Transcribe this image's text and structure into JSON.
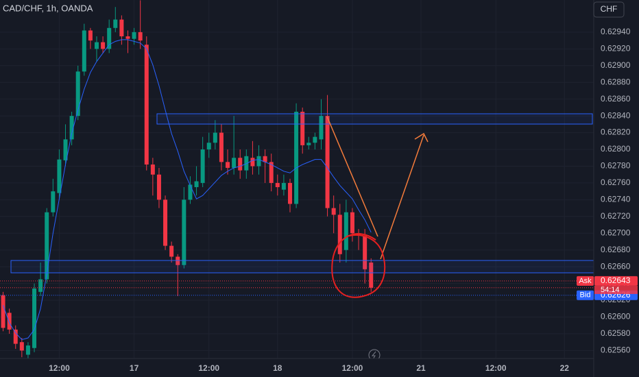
{
  "chart_data": {
    "type": "candlestick",
    "title": "CAD/CHF, 1h, OANDA",
    "currency": "CHF",
    "colors": {
      "up": "#089981",
      "down": "#f23645"
    },
    "open": [
      0.62626,
      0.62605,
      0.62585,
      0.6257,
      0.62555,
      0.62563,
      0.6263,
      0.62645,
      0.62725,
      0.62748,
      0.62787,
      0.62812,
      0.6284,
      0.62893,
      0.62942,
      0.6292,
      0.62928,
      0.6292,
      0.62945,
      0.62955,
      0.62935,
      0.62932,
      0.6294,
      0.62925,
      0.62782,
      0.6277,
      0.6274,
      0.62685,
      0.62672,
      0.62662,
      0.6274,
      0.62755,
      0.6276,
      0.628,
      0.62808,
      0.6282,
      0.62785,
      0.62778,
      0.6279,
      0.62775,
      0.6279,
      0.6278,
      0.62792,
      0.62785,
      0.6276,
      0.62752,
      0.6276,
      0.62735,
      0.62845,
      0.62805,
      0.62808,
      0.62812,
      0.6284,
      0.6273,
      0.62722,
      0.6268,
      0.62725,
      0.627,
      0.62697,
      0.62665
    ],
    "high": [
      0.6263,
      0.6261,
      0.6259,
      0.62575,
      0.6257,
      0.6264,
      0.62665,
      0.6273,
      0.62765,
      0.628,
      0.6283,
      0.62845,
      0.629,
      0.6295,
      0.62945,
      0.62935,
      0.62935,
      0.62955,
      0.6297,
      0.6296,
      0.62942,
      0.62945,
      0.62978,
      0.62935,
      0.6279,
      0.62778,
      0.62745,
      0.6269,
      0.62675,
      0.62755,
      0.62768,
      0.6278,
      0.62815,
      0.6282,
      0.62835,
      0.6283,
      0.628,
      0.6284,
      0.628,
      0.628,
      0.6281,
      0.62805,
      0.628,
      0.62795,
      0.6277,
      0.6277,
      0.62765,
      0.62855,
      0.6285,
      0.62815,
      0.6282,
      0.6286,
      0.62865,
      0.62745,
      0.62735,
      0.6274,
      0.6273,
      0.62705,
      0.62705,
      0.6267
    ],
    "low": [
      0.62583,
      0.6258,
      0.62562,
      0.62552,
      0.62548,
      0.62558,
      0.62625,
      0.6264,
      0.6272,
      0.6274,
      0.6278,
      0.62805,
      0.62835,
      0.62888,
      0.6292,
      0.62905,
      0.62915,
      0.62915,
      0.6294,
      0.62925,
      0.62915,
      0.62925,
      0.6292,
      0.62775,
      0.62745,
      0.6273,
      0.6268,
      0.62665,
      0.62625,
      0.62658,
      0.62735,
      0.62745,
      0.62755,
      0.6279,
      0.628,
      0.62775,
      0.6277,
      0.6277,
      0.62765,
      0.62765,
      0.6277,
      0.6277,
      0.6276,
      0.6275,
      0.62745,
      0.62745,
      0.62725,
      0.6273,
      0.62795,
      0.628,
      0.628,
      0.628,
      0.6272,
      0.627,
      0.62665,
      0.62665,
      0.6269,
      0.6268,
      0.6264,
      0.6263
    ],
    "close": [
      0.62587,
      0.62585,
      0.62568,
      0.6256,
      0.62566,
      0.62634,
      0.62645,
      0.62725,
      0.6275,
      0.62788,
      0.62812,
      0.6284,
      0.62893,
      0.62942,
      0.6293,
      0.62928,
      0.6292,
      0.62945,
      0.62955,
      0.62935,
      0.62932,
      0.6294,
      0.6293,
      0.62782,
      0.6277,
      0.6274,
      0.62685,
      0.62672,
      0.62662,
      0.6274,
      0.62758,
      0.62762,
      0.628,
      0.62808,
      0.6282,
      0.62785,
      0.62778,
      0.6279,
      0.62775,
      0.62792,
      0.6278,
      0.62792,
      0.62785,
      0.6276,
      0.62755,
      0.6276,
      0.62735,
      0.62845,
      0.62805,
      0.62808,
      0.62815,
      0.6284,
      0.6273,
      0.62722,
      0.62675,
      0.62725,
      0.627,
      0.62697,
      0.62657,
      0.62635
    ],
    "ma": {
      "color": "#2962ff",
      "values": [
        0.62614,
        0.62593,
        0.62581,
        0.62573,
        0.62575,
        0.62585,
        0.6261,
        0.62651,
        0.627,
        0.62741,
        0.62782,
        0.62819,
        0.62847,
        0.62872,
        0.62892,
        0.62905,
        0.62915,
        0.62925,
        0.62929,
        0.62931,
        0.62931,
        0.62929,
        0.62927,
        0.6292,
        0.62901,
        0.62876,
        0.62847,
        0.62819,
        0.62798,
        0.62774,
        0.62757,
        0.62741,
        0.62745,
        0.62753,
        0.62761,
        0.62769,
        0.62774,
        0.62778,
        0.6278,
        0.62783,
        0.62787,
        0.62788,
        0.62785,
        0.62782,
        0.62778,
        0.62774,
        0.62772,
        0.62778,
        0.62782,
        0.62785,
        0.62788,
        0.62788,
        0.62778,
        0.62767,
        0.62757,
        0.62749,
        0.62741,
        0.62728,
        0.62716,
        0.62701
      ]
    },
    "ylim": [
      0.6255,
      0.6298
    ],
    "yticks": [
      {
        "value": 0.6256,
        "label": "0.62560"
      },
      {
        "value": 0.6258,
        "label": "0.62580"
      },
      {
        "value": 0.626,
        "label": "0.62600"
      },
      {
        "value": 0.6262,
        "label": "0.62620"
      },
      {
        "value": 0.6264,
        "label": "0.62640"
      },
      {
        "value": 0.6266,
        "label": "0.62660"
      },
      {
        "value": 0.6268,
        "label": "0.62680"
      },
      {
        "value": 0.627,
        "label": "0.62700"
      },
      {
        "value": 0.6272,
        "label": "0.62720"
      },
      {
        "value": 0.6274,
        "label": "0.62740"
      },
      {
        "value": 0.6276,
        "label": "0.62760"
      },
      {
        "value": 0.6278,
        "label": "0.62780"
      },
      {
        "value": 0.628,
        "label": "0.62800"
      },
      {
        "value": 0.6282,
        "label": "0.62820"
      },
      {
        "value": 0.6284,
        "label": "0.62840"
      },
      {
        "value": 0.6286,
        "label": "0.62860"
      },
      {
        "value": 0.6288,
        "label": "0.62880"
      },
      {
        "value": 0.629,
        "label": "0.62900"
      },
      {
        "value": 0.6292,
        "label": "0.62920"
      },
      {
        "value": 0.6294,
        "label": "0.62940"
      }
    ],
    "xlim": [
      -0.5,
      94.7
    ],
    "xticks": [
      {
        "value": 9,
        "label": "12:00"
      },
      {
        "value": 21,
        "label": "17"
      },
      {
        "value": 33,
        "label": "12:00"
      },
      {
        "value": 44,
        "label": "18"
      },
      {
        "value": 56,
        "label": "12:00"
      },
      {
        "value": 67,
        "label": "21"
      },
      {
        "value": 79,
        "label": "12:00"
      },
      {
        "value": 90,
        "label": "22"
      }
    ],
    "ask": {
      "label": "Ask",
      "value": 0.62643,
      "color": "#f23645"
    },
    "bid": {
      "label": "Bid",
      "value": 0.62626,
      "color": "#2962ff"
    },
    "countdown": "54:14",
    "grid": true
  }
}
